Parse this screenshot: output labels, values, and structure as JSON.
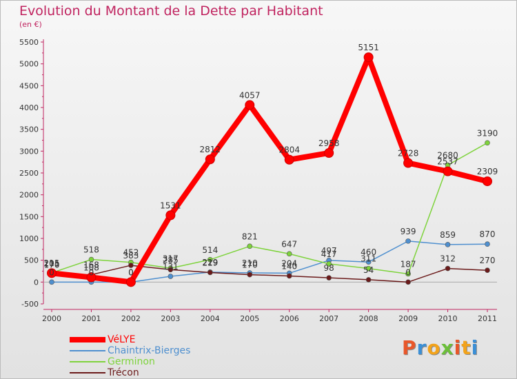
{
  "chart_data": {
    "type": "line",
    "title": "Evolution du Montant de la Dette par Habitant",
    "subtitle": "(en €)",
    "x": [
      "2000",
      "2001",
      "2002",
      "2003",
      "2004",
      "2005",
      "2006",
      "2007",
      "2008",
      "2009",
      "2010",
      "2011"
    ],
    "ylim": [
      -500,
      5500
    ],
    "yticks": [
      -500,
      0,
      500,
      1000,
      1500,
      2000,
      2500,
      3000,
      3500,
      4000,
      4500,
      5000,
      5500
    ],
    "series": [
      {
        "name": "VéLYE",
        "color": "#ff0000",
        "values": [
          205,
          108,
          0,
          1531,
          2812,
          4057,
          2804,
          2958,
          5151,
          2728,
          2537,
          2309
        ],
        "labels": [
          "205",
          "108",
          "0",
          "1531",
          "2812",
          "4057",
          "2804",
          "2958",
          "5151",
          "2728",
          "2537",
          "2309"
        ]
      },
      {
        "name": "Chaintrix-Bierges",
        "color": "#4e8fcf",
        "values": [
          0,
          0,
          0,
          131,
          229,
          210,
          204,
          497,
          460,
          939,
          859,
          870
        ],
        "labels": [
          "0",
          "0",
          "0",
          "131",
          "229",
          "210",
          "204",
          "497",
          "460",
          "939",
          "859",
          "870"
        ]
      },
      {
        "name": "Germinon",
        "color": "#7ed33c",
        "values": [
          211,
          518,
          452,
          317,
          514,
          821,
          647,
          417,
          311,
          187,
          2680,
          3190
        ],
        "labels": [
          "211",
          "518",
          "452",
          "317",
          "514",
          "821",
          "647",
          "417",
          "311",
          "187",
          "2680",
          "3190"
        ]
      },
      {
        "name": "Trécon",
        "color": "#6b1a1a",
        "values": [
          170,
          168,
          383,
          285,
          219,
          170,
          140,
          98,
          54,
          0,
          312,
          270
        ],
        "labels": [
          "170",
          "168",
          "383",
          "285",
          "219",
          "170",
          "140",
          "98",
          "54",
          "0",
          "312",
          "270"
        ]
      }
    ],
    "legend_position": "bottom-left",
    "grid": false
  },
  "brand": {
    "logo_text": "Proxiti",
    "logo_colors": [
      "#e8572a",
      "#3b8fd6",
      "#f2a31b",
      "#6cbf3a",
      "#e8572a",
      "#f2a31b",
      "#3b8fd6"
    ]
  }
}
